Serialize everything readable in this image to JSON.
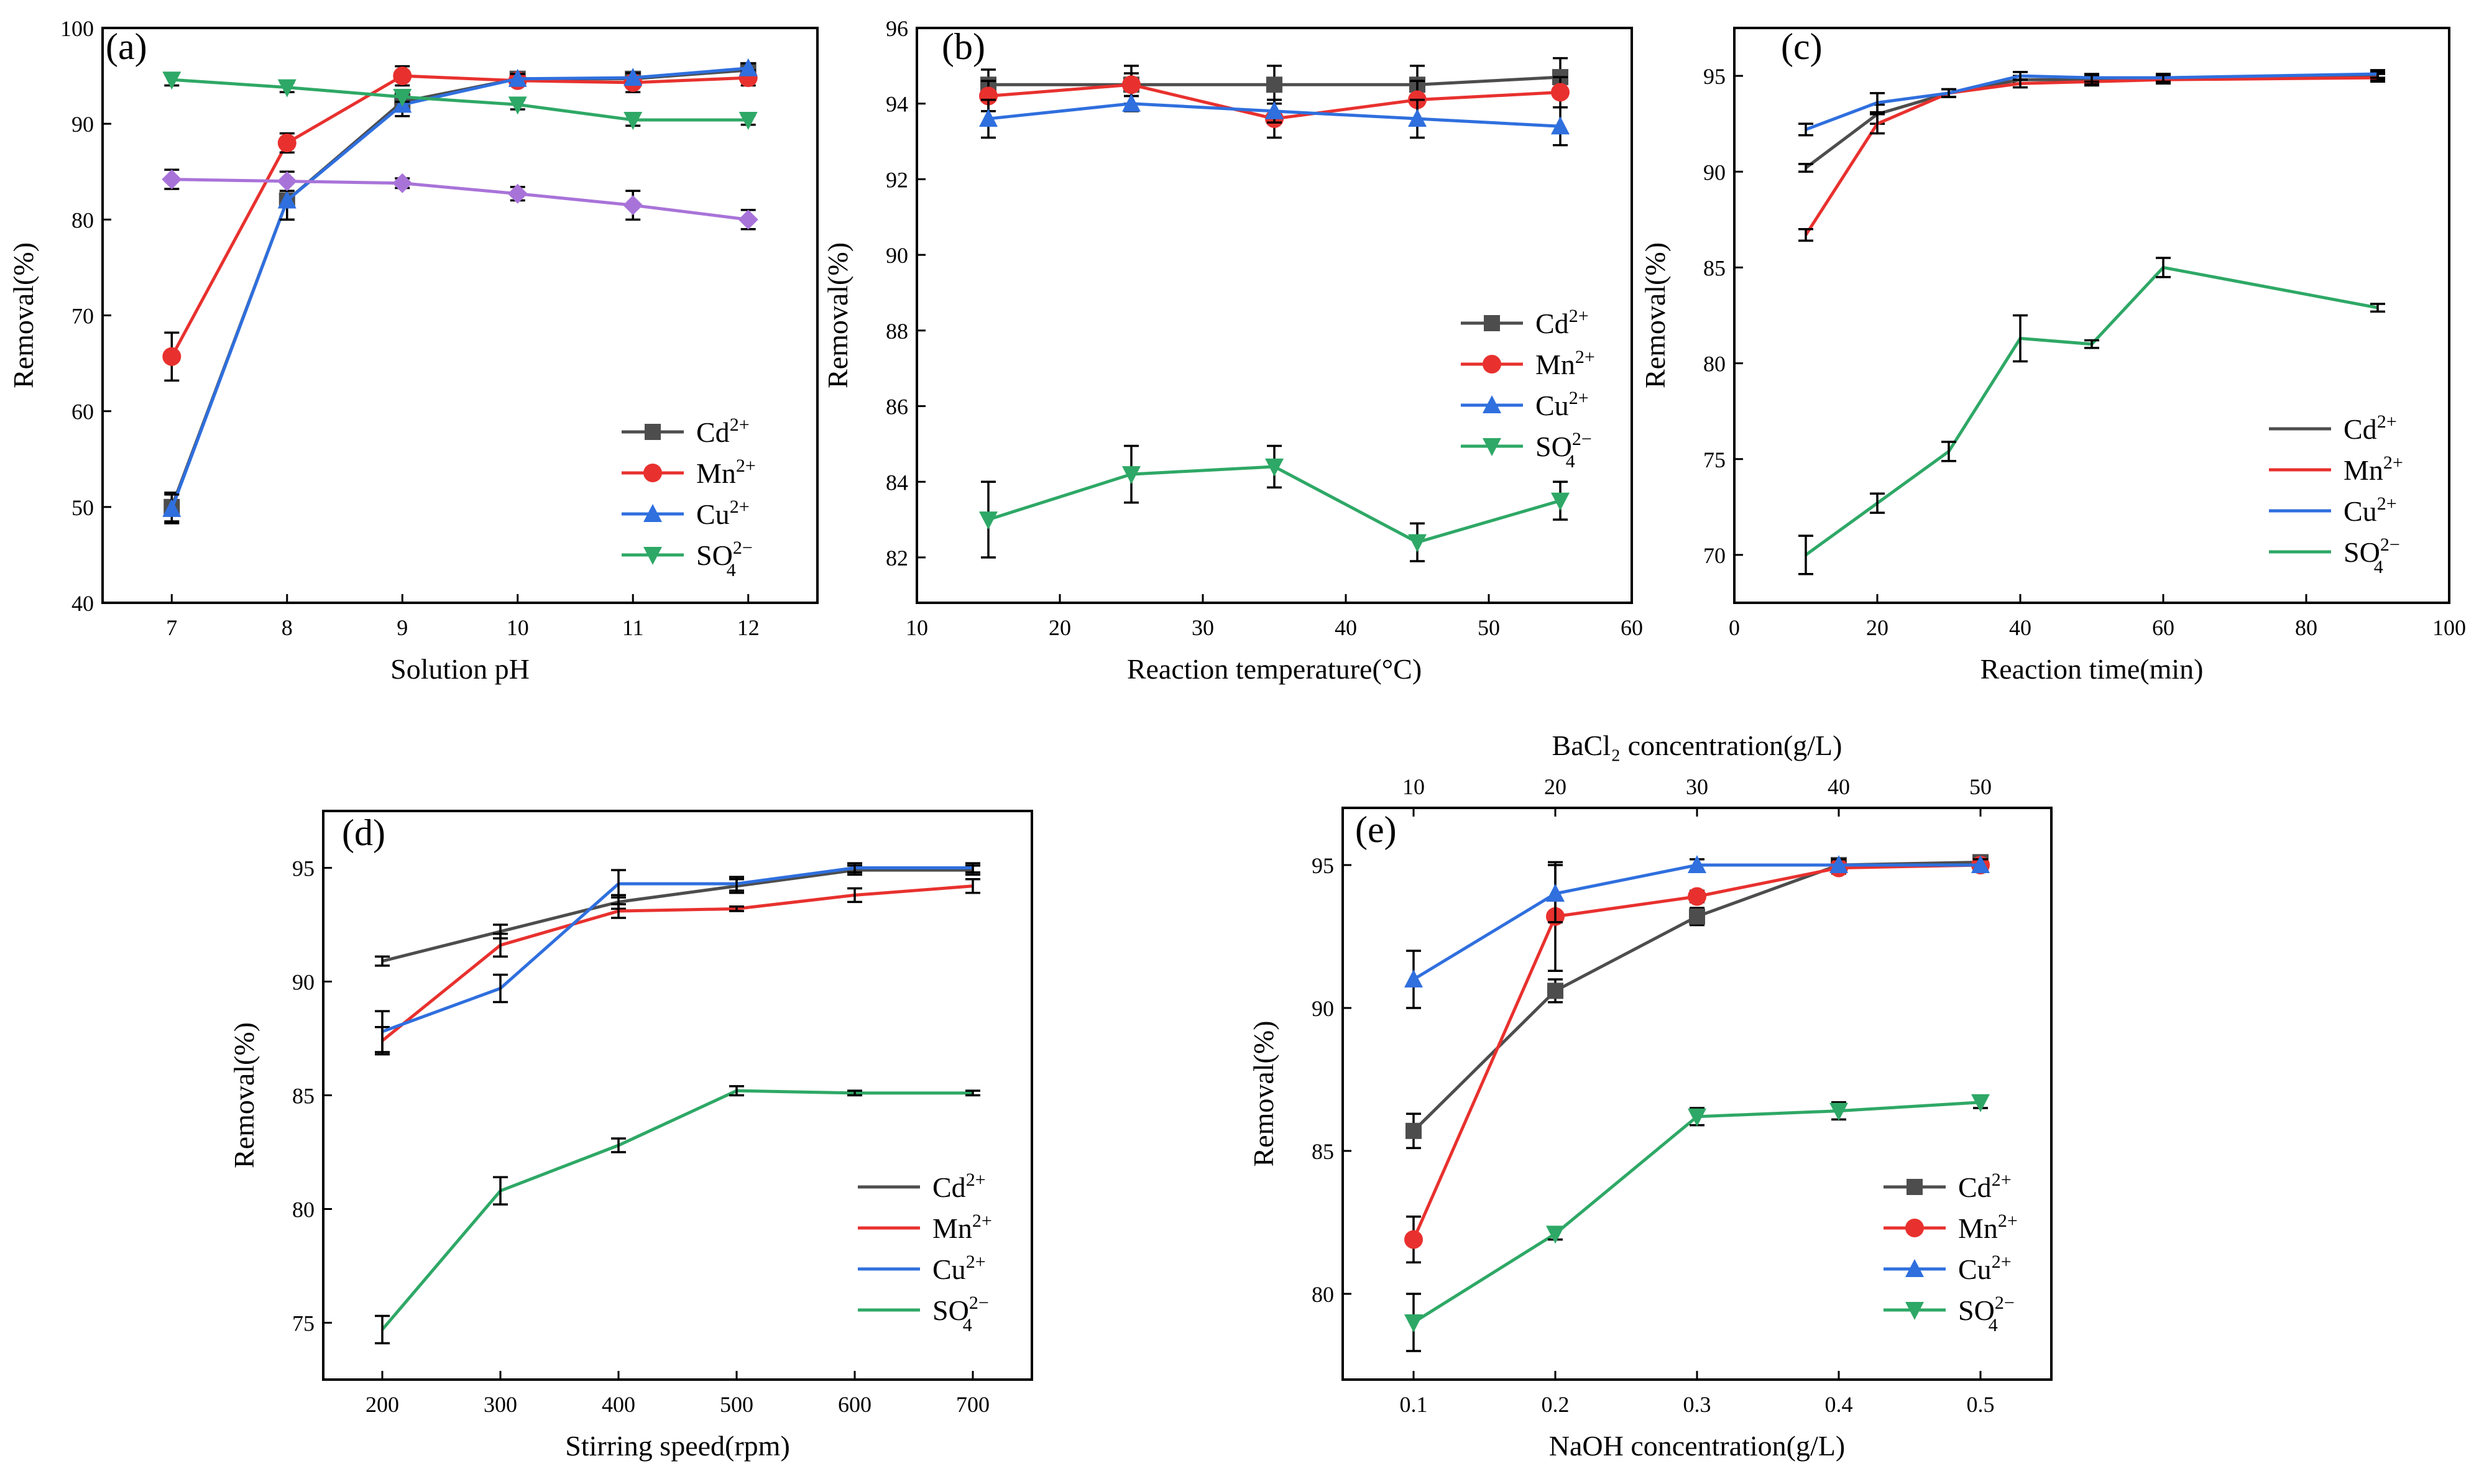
{
  "chart_data": [
    {
      "type": "line",
      "panel_label": "(a)",
      "xlabel": "Solution pH",
      "ylabel": "Removal(%)",
      "xlim": [
        6.4,
        12.6
      ],
      "ylim": [
        40,
        100
      ],
      "xticks": [
        7,
        8,
        9,
        10,
        11,
        12
      ],
      "yticks": [
        40,
        50,
        60,
        70,
        80,
        90,
        100
      ],
      "legend_position": "lower-right",
      "x": [
        7,
        8,
        9,
        10,
        11,
        12
      ],
      "series": [
        {
          "name": "Cd",
          "charge": "2+",
          "color": "#4d4d4d",
          "marker": "square",
          "values": [
            50.0,
            82.0,
            92.3,
            94.7,
            94.7,
            95.6
          ],
          "errors": [
            1.5,
            2.0,
            0.8,
            0.5,
            0.6,
            0.5
          ]
        },
        {
          "name": "Mn",
          "charge": "2+",
          "color": "#e8312e",
          "marker": "circle",
          "values": [
            65.7,
            88.0,
            95.0,
            94.5,
            94.3,
            94.8
          ],
          "errors": [
            2.5,
            1.0,
            1.0,
            0.5,
            1.0,
            0.8
          ]
        },
        {
          "name": "Cu",
          "charge": "2+",
          "color": "#2f6fde",
          "marker": "triangle-up",
          "values": [
            49.8,
            82.0,
            92.0,
            94.7,
            94.8,
            95.8
          ],
          "errors": [
            1.5,
            2.0,
            1.2,
            0.5,
            0.5,
            0.5
          ]
        },
        {
          "name": "SO",
          "sub": "4",
          "charge": "2−",
          "color": "#2ea866",
          "marker": "triangle-down",
          "values": [
            94.6,
            93.8,
            92.8,
            92.0,
            90.4,
            90.4
          ],
          "errors": [
            0.6,
            0.5,
            0.5,
            0.5,
            0.6,
            0.5
          ]
        },
        {
          "name": "",
          "color": "#a873d9",
          "marker": "diamond",
          "values": [
            84.2,
            84.0,
            83.8,
            82.7,
            81.5,
            80.0
          ],
          "errors": [
            1.0,
            1.0,
            0.5,
            0.7,
            1.5,
            1.0
          ]
        }
      ]
    },
    {
      "type": "line",
      "panel_label": "(b)",
      "xlabel": "Reaction temperature(°C)",
      "ylabel": "Removal(%)",
      "xlim": [
        10,
        60
      ],
      "ylim": [
        80.8,
        96
      ],
      "xticks": [
        10,
        20,
        30,
        40,
        50,
        60
      ],
      "yticks": [
        82,
        84,
        86,
        88,
        90,
        92,
        94,
        96
      ],
      "legend_position": "center-right",
      "x": [
        15,
        25,
        35,
        45,
        55
      ],
      "series": [
        {
          "name": "Cd",
          "charge": "2+",
          "color": "#4d4d4d",
          "marker": "square",
          "values": [
            94.5,
            94.5,
            94.5,
            94.5,
            94.7
          ],
          "errors": [
            0.4,
            0.3,
            0.5,
            0.5,
            0.5
          ]
        },
        {
          "name": "Mn",
          "charge": "2+",
          "color": "#e8312e",
          "marker": "circle",
          "values": [
            94.2,
            94.5,
            93.6,
            94.1,
            94.3
          ],
          "errors": [
            0.4,
            0.5,
            0.5,
            0.5,
            0.4
          ]
        },
        {
          "name": "Cu",
          "charge": "2+",
          "color": "#2f6fde",
          "marker": "triangle-up",
          "values": [
            93.6,
            94.0,
            93.8,
            93.6,
            93.4
          ],
          "errors": [
            0.5,
            0.2,
            0.3,
            0.5,
            0.5
          ]
        },
        {
          "name": "SO",
          "sub": "4",
          "charge": "2−",
          "color": "#2ea866",
          "marker": "triangle-down",
          "values": [
            83.0,
            84.2,
            84.4,
            82.4,
            83.5
          ],
          "errors": [
            1.0,
            0.75,
            0.55,
            0.5,
            0.5
          ]
        }
      ]
    },
    {
      "type": "line",
      "panel_label": "(c)",
      "xlabel": "Reaction time(min)",
      "ylabel": "Removal(%)",
      "xlim": [
        0,
        100
      ],
      "ylim": [
        67.5,
        97.5
      ],
      "xticks": [
        0,
        20,
        40,
        60,
        80,
        100
      ],
      "yticks": [
        70,
        75,
        80,
        85,
        90,
        95
      ],
      "legend_position": "lower-right",
      "x": [
        10,
        20,
        30,
        40,
        50,
        60,
        90
      ],
      "series": [
        {
          "name": "Cd",
          "charge": "2+",
          "color": "#4d4d4d",
          "marker": "none",
          "values": [
            90.2,
            93.0,
            94.1,
            94.8,
            94.8,
            94.9,
            95.0
          ],
          "errors": [
            0.2,
            0.5,
            0.2,
            0.2,
            0.2,
            0.2,
            0.2
          ]
        },
        {
          "name": "Mn",
          "charge": "2+",
          "color": "#e8312e",
          "marker": "none",
          "values": [
            86.7,
            92.5,
            94.1,
            94.6,
            94.7,
            94.8,
            94.9
          ],
          "errors": [
            0.3,
            0.5,
            0.2,
            0.2,
            0.2,
            0.2,
            0.2
          ]
        },
        {
          "name": "Cu",
          "charge": "2+",
          "color": "#2f6fde",
          "marker": "none",
          "values": [
            92.2,
            93.6,
            94.1,
            95.0,
            94.9,
            94.9,
            95.1
          ],
          "errors": [
            0.3,
            0.5,
            0.2,
            0.2,
            0.2,
            0.2,
            0.2
          ]
        },
        {
          "name": "SO",
          "sub": "4",
          "charge": "2−",
          "color": "#2ea866",
          "marker": "none",
          "values": [
            70.0,
            72.7,
            75.4,
            81.3,
            81.0,
            85.0,
            82.9
          ],
          "errors": [
            1.0,
            0.5,
            0.5,
            1.2,
            0.2,
            0.5,
            0.2
          ]
        }
      ]
    },
    {
      "type": "line",
      "panel_label": "(d)",
      "xlabel": "Stirring speed(rpm)",
      "ylabel": "Removal(%)",
      "xlim": [
        150,
        750
      ],
      "ylim": [
        72.5,
        97.5
      ],
      "xticks": [
        200,
        300,
        400,
        500,
        600,
        700
      ],
      "yticks": [
        75,
        80,
        85,
        90,
        95
      ],
      "legend_position": "lower-right",
      "x": [
        200,
        300,
        400,
        500,
        600,
        700
      ],
      "series": [
        {
          "name": "Cd",
          "charge": "2+",
          "color": "#4d4d4d",
          "marker": "none",
          "values": [
            90.9,
            92.2,
            93.5,
            94.2,
            94.9,
            94.9
          ],
          "errors": [
            0.2,
            0.3,
            0.3,
            0.3,
            0.2,
            0.2
          ]
        },
        {
          "name": "Mn",
          "charge": "2+",
          "color": "#e8312e",
          "marker": "none",
          "values": [
            87.4,
            91.6,
            93.1,
            93.2,
            93.8,
            94.2
          ],
          "errors": [
            0.6,
            0.5,
            0.3,
            0.1,
            0.3,
            0.3
          ]
        },
        {
          "name": "Cu",
          "charge": "2+",
          "color": "#2f6fde",
          "marker": "none",
          "values": [
            87.8,
            89.7,
            94.3,
            94.3,
            95.0,
            95.0
          ],
          "errors": [
            0.9,
            0.6,
            0.6,
            0.3,
            0.2,
            0.2
          ]
        },
        {
          "name": "SO",
          "sub": "4",
          "charge": "2−",
          "color": "#2ea866",
          "marker": "none",
          "values": [
            74.7,
            80.8,
            82.8,
            85.2,
            85.1,
            85.1
          ],
          "errors": [
            0.6,
            0.6,
            0.3,
            0.2,
            0.1,
            0.1
          ]
        }
      ]
    },
    {
      "type": "line",
      "panel_label": "(e)",
      "xlabel": "NaOH concentration(g/L)",
      "ylabel": "Removal(%)",
      "top_xlabel": "BaCl₂ concentration(g/L)",
      "top_xticks": [
        10,
        20,
        30,
        40,
        50
      ],
      "xlim": [
        0.05,
        0.55
      ],
      "ylim": [
        77,
        97
      ],
      "xticks": [
        0.1,
        0.2,
        0.3,
        0.4,
        0.5
      ],
      "yticks": [
        80,
        85,
        90,
        95
      ],
      "legend_position": "lower-right",
      "x": [
        0.1,
        0.2,
        0.3,
        0.4,
        0.5
      ],
      "series": [
        {
          "name": "Cd",
          "charge": "2+",
          "color": "#4d4d4d",
          "marker": "square",
          "values": [
            85.7,
            90.6,
            93.2,
            95.0,
            95.1
          ],
          "errors": [
            0.6,
            0.4,
            0.3,
            0.2,
            0.2
          ]
        },
        {
          "name": "Mn",
          "charge": "2+",
          "color": "#e8312e",
          "marker": "circle",
          "values": [
            81.9,
            93.2,
            93.9,
            94.9,
            95.0
          ],
          "errors": [
            0.8,
            1.9,
            0.2,
            0.2,
            0.2
          ]
        },
        {
          "name": "Cu",
          "charge": "2+",
          "color": "#2f6fde",
          "marker": "triangle-up",
          "values": [
            91.0,
            94.0,
            95.0,
            95.0,
            95.0
          ],
          "errors": [
            1.0,
            1.0,
            0.2,
            0.2,
            0.2
          ]
        },
        {
          "name": "SO",
          "sub": "4",
          "charge": "2−",
          "color": "#2ea866",
          "marker": "triangle-down",
          "values": [
            79.0,
            82.1,
            86.2,
            86.4,
            86.7
          ],
          "errors": [
            1.0,
            0.2,
            0.3,
            0.3,
            0.2
          ]
        }
      ]
    }
  ]
}
